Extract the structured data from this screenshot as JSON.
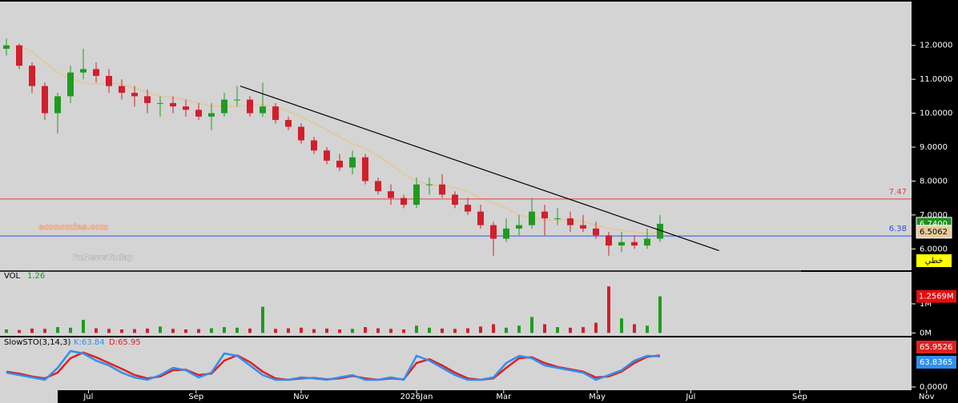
{
  "chart_data": [
    {
      "type": "candlestick",
      "up_color": "#1f9b1f",
      "down_color": "#d11f2c",
      "open": [
        11.9,
        12.0,
        11.4,
        10.8,
        10.0,
        10.5,
        11.2,
        11.3,
        11.1,
        10.8,
        10.6,
        10.5,
        10.3,
        10.3,
        10.2,
        10.1,
        9.9,
        10.0,
        10.4,
        10.4,
        10.0,
        10.2,
        9.8,
        9.6,
        9.2,
        8.9,
        8.6,
        8.4,
        8.7,
        8.0,
        7.7,
        7.5,
        7.3,
        7.9,
        7.9,
        7.6,
        7.3,
        7.1,
        6.7,
        6.3,
        6.6,
        6.7,
        7.1,
        6.9,
        6.9,
        6.7,
        6.6,
        6.4,
        6.1,
        6.2,
        6.1,
        6.3
      ],
      "high": [
        12.2,
        12.05,
        11.5,
        10.9,
        10.6,
        11.4,
        11.9,
        11.5,
        11.3,
        11.0,
        10.8,
        10.7,
        10.5,
        10.5,
        10.4,
        10.3,
        10.3,
        10.6,
        10.8,
        10.5,
        10.9,
        10.3,
        9.9,
        9.7,
        9.3,
        9.0,
        8.8,
        8.9,
        8.8,
        8.1,
        7.9,
        7.6,
        8.1,
        8.1,
        8.2,
        7.7,
        7.5,
        7.3,
        6.8,
        6.9,
        7.0,
        7.5,
        7.3,
        7.2,
        7.1,
        7.0,
        6.8,
        6.5,
        6.5,
        6.4,
        6.6,
        7.0
      ],
      "low": [
        11.7,
        11.3,
        10.6,
        9.8,
        9.4,
        10.3,
        11.0,
        10.9,
        10.6,
        10.4,
        10.2,
        10.0,
        9.9,
        10.0,
        9.9,
        9.8,
        9.5,
        9.9,
        10.2,
        9.9,
        9.9,
        9.7,
        9.5,
        9.1,
        8.8,
        8.5,
        8.3,
        8.2,
        7.9,
        7.6,
        7.3,
        7.2,
        7.2,
        7.6,
        7.5,
        7.2,
        7.0,
        6.6,
        5.8,
        6.2,
        6.4,
        6.6,
        6.4,
        6.7,
        6.5,
        6.5,
        6.3,
        5.8,
        5.9,
        6.0,
        6.0,
        6.2
      ],
      "close": [
        12.0,
        11.4,
        10.8,
        10.0,
        10.5,
        11.2,
        11.3,
        11.1,
        10.8,
        10.6,
        10.5,
        10.3,
        10.3,
        10.2,
        10.1,
        9.9,
        10.0,
        10.4,
        10.4,
        10.0,
        10.2,
        9.8,
        9.6,
        9.2,
        8.9,
        8.6,
        8.4,
        8.7,
        8.0,
        7.7,
        7.5,
        7.3,
        7.9,
        7.9,
        7.6,
        7.3,
        7.1,
        6.7,
        6.3,
        6.6,
        6.7,
        7.1,
        6.9,
        6.9,
        6.7,
        6.6,
        6.4,
        6.1,
        6.2,
        6.1,
        6.3,
        6.74
      ],
      "moving_average": {
        "color": "#e0c9a0",
        "values": [
          null,
          12.0,
          11.8,
          11.5,
          11.2,
          11.0,
          10.9,
          10.85,
          10.9,
          10.85,
          10.75,
          10.6,
          10.5,
          10.45,
          10.4,
          10.3,
          10.2,
          10.2,
          10.2,
          10.25,
          10.25,
          10.2,
          10.05,
          9.9,
          9.7,
          9.5,
          9.3,
          9.1,
          8.95,
          8.75,
          8.5,
          8.2,
          8.0,
          7.9,
          7.85,
          7.8,
          7.7,
          7.5,
          7.35,
          7.2,
          7.0,
          6.9,
          6.85,
          6.85,
          6.85,
          6.8,
          6.7,
          6.6,
          6.55,
          6.5,
          6.45,
          6.5
        ]
      },
      "trendline": {
        "color": "#000000",
        "x": [
          18.25,
          55.6
        ],
        "y": [
          10.8,
          5.95
        ]
      },
      "hlines": [
        {
          "value": 7.47,
          "label": "7.47",
          "color": "#e04040"
        },
        {
          "value": 6.38,
          "label": "6.38",
          "color": "#3050e0"
        }
      ],
      "price_tags": [
        {
          "value": 6.74,
          "label": "6.7400",
          "color": "#1a8f1a"
        },
        {
          "value": 6.5062,
          "label": "6.5062",
          "color": "#e6cc9e"
        }
      ],
      "tag_text": "خطي",
      "ylim": [
        5.37,
        13.29
      ],
      "yticks": [
        {
          "value": 6,
          "label": "6.0000"
        },
        {
          "value": 7,
          "label": "7.0000"
        },
        {
          "value": 8,
          "label": "8.0000"
        },
        {
          "value": 9,
          "label": "9.0000"
        },
        {
          "value": 10,
          "label": "10.0000"
        },
        {
          "value": 11,
          "label": "11.0000"
        },
        {
          "value": 12,
          "label": "12.0000"
        }
      ],
      "xlim": [
        -0.5,
        74.25
      ],
      "xticks": [
        {
          "value": 6.4,
          "label": "Jul"
        },
        {
          "value": 14.8,
          "label": "Sep"
        },
        {
          "value": 23,
          "label": "Nov"
        },
        {
          "value": 32,
          "label": "2026Jan"
        },
        {
          "value": 38.8,
          "label": "Mar"
        },
        {
          "value": 46.1,
          "label": "May"
        },
        {
          "value": 53.4,
          "label": "Jul"
        },
        {
          "value": 61.9,
          "label": "Sep"
        },
        {
          "value": 71.8,
          "label": "Nov"
        }
      ],
      "watermark": [
        "economies.com",
        "FxNewsToday"
      ]
    },
    {
      "type": "bar",
      "title": "VOL",
      "last_label": "1.26",
      "values": [
        0.12,
        0.1,
        0.15,
        0.14,
        0.2,
        0.18,
        0.45,
        0.16,
        0.14,
        0.12,
        0.13,
        0.15,
        0.22,
        0.14,
        0.12,
        0.13,
        0.16,
        0.2,
        0.18,
        0.15,
        0.9,
        0.14,
        0.16,
        0.18,
        0.13,
        0.15,
        0.12,
        0.14,
        0.2,
        0.16,
        0.14,
        0.12,
        0.25,
        0.18,
        0.15,
        0.14,
        0.16,
        0.22,
        0.3,
        0.18,
        0.25,
        0.55,
        0.3,
        0.2,
        0.18,
        0.2,
        0.35,
        1.6,
        0.5,
        0.3,
        0.25,
        1.2569
      ],
      "tag": {
        "value": 1.2569,
        "label": "1.2569M",
        "color": "#e01010"
      },
      "ylim": [
        -0.1,
        2.1
      ],
      "yticks": [
        {
          "value": 0,
          "label": "0M"
        },
        {
          "value": 1,
          "label": "1M"
        }
      ]
    },
    {
      "type": "line",
      "title": "SlowSTO(3,14,3)",
      "series": [
        {
          "name": "K:63.84",
          "color": "#2f8ff0",
          "tag": "63.8365",
          "values": [
            30,
            25,
            20,
            15,
            40,
            75,
            70,
            55,
            45,
            30,
            20,
            15,
            25,
            40,
            35,
            20,
            30,
            70,
            65,
            45,
            25,
            15,
            15,
            20,
            18,
            15,
            20,
            25,
            15,
            15,
            20,
            15,
            65,
            55,
            40,
            25,
            15,
            15,
            20,
            50,
            65,
            60,
            45,
            40,
            35,
            30,
            15,
            25,
            35,
            55,
            65,
            63.84
          ]
        },
        {
          "name": "D:65.95",
          "color": "#e02020",
          "tag": "65.9526",
          "values": [
            32,
            28,
            22,
            18,
            30,
            60,
            72,
            62,
            50,
            38,
            25,
            18,
            22,
            35,
            36,
            25,
            28,
            55,
            66,
            52,
            32,
            18,
            15,
            18,
            19,
            16,
            18,
            23,
            18,
            15,
            18,
            16,
            50,
            58,
            45,
            30,
            18,
            15,
            18,
            40,
            60,
            62,
            50,
            42,
            37,
            32,
            20,
            22,
            32,
            50,
            63,
            65.95
          ]
        }
      ],
      "ylim": [
        0,
        100
      ],
      "yticks": [
        {
          "value": 0,
          "label": "0.0000"
        }
      ]
    }
  ]
}
